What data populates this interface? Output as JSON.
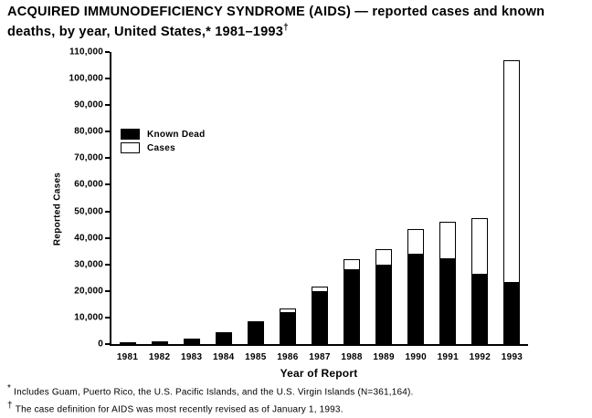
{
  "figure": {
    "title_line1": "ACQUIRED IMMUNODEFICIENCY SYNDROME (AIDS) — reported cases and known",
    "title_line2": "deaths, by year, United States,* 1981–1993",
    "title_dagger": "†",
    "footnotes": [
      {
        "marker": "*",
        "text": "Includes Guam, Puerto Rico, the U.S. Pacific Islands, and the U.S. Virgin Islands (N=361,164)."
      },
      {
        "marker": "†",
        "text": "The case definition for AIDS was most recently revised as of January 1, 1993."
      }
    ]
  },
  "chart_data": {
    "type": "bar",
    "stacked": true,
    "title": "ACQUIRED IMMUNODEFICIENCY SYNDROME (AIDS) — reported cases and known deaths, by year, United States, 1981–1993",
    "xlabel": "Year of Report",
    "ylabel": "Reported Cases",
    "ylim": [
      0,
      110000
    ],
    "ytick_step": 10000,
    "grid": false,
    "legend_position": "upper-left-inside",
    "note": "Total bar height = reported cases; black lower segment = known dead. Values estimated from axis gridlines.",
    "categories": [
      "1981",
      "1982",
      "1983",
      "1984",
      "1985",
      "1986",
      "1987",
      "1988",
      "1989",
      "1990",
      "1991",
      "1992",
      "1993"
    ],
    "series": [
      {
        "name": "Known Dead",
        "color": "#000000",
        "values": [
          650,
          1050,
          2100,
          4300,
          8400,
          11900,
          20000,
          28200,
          29900,
          34200,
          32200,
          26500,
          23300
        ]
      },
      {
        "name": "Cases",
        "color": "#ffffff",
        "values": [
          700,
          1100,
          2200,
          4400,
          8500,
          13400,
          21500,
          32000,
          35600,
          43300,
          45900,
          47600,
          106900
        ]
      }
    ],
    "legend": [
      {
        "label": "Known Dead",
        "fill": "#000000"
      },
      {
        "label": "Cases",
        "fill": "#ffffff"
      }
    ]
  }
}
